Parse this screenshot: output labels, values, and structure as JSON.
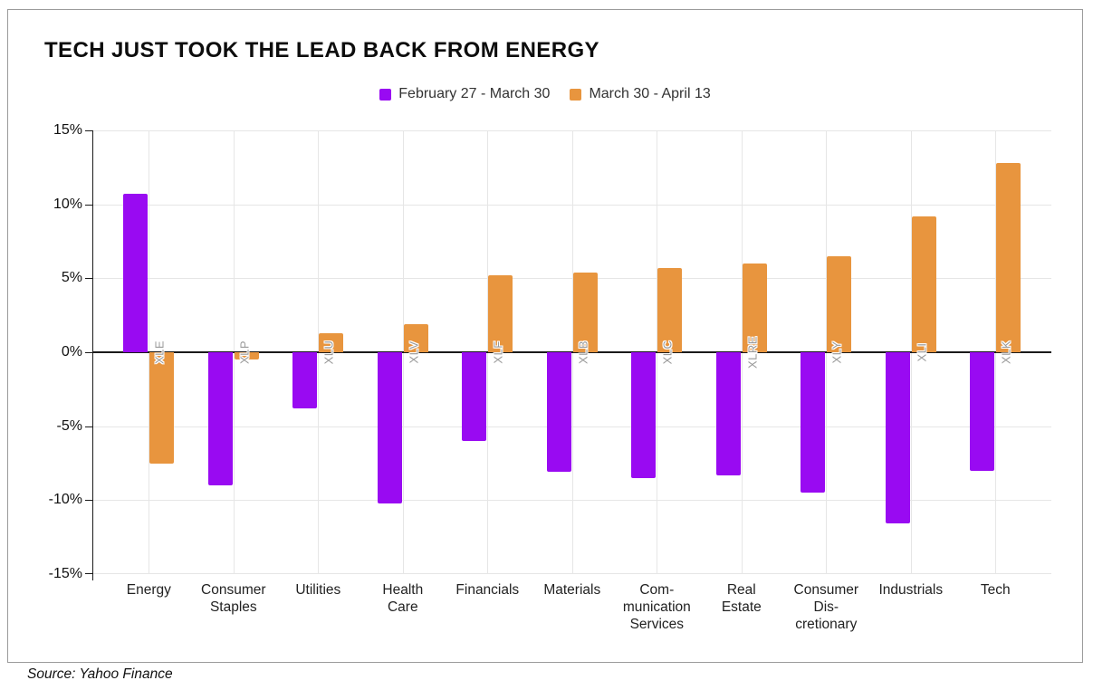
{
  "title": "TECH JUST TOOK THE LEAD BACK FROM ENERGY",
  "source_note": "Source: Yahoo Finance",
  "legend": [
    {
      "label": "February 27 - March 30",
      "color": "#990af2"
    },
    {
      "label": "March 30 - April 13",
      "color": "#e8953e"
    }
  ],
  "colors": {
    "series_purple": "#990af2",
    "series_orange": "#e8953e",
    "gridline": "#e6e6e6",
    "axis": "#1a1a1a",
    "ticker_text": "#999999",
    "box_border": "#9b9b9b"
  },
  "chart_data": {
    "type": "bar",
    "title": "TECH JUST TOOK THE LEAD BACK FROM ENERGY",
    "categories": [
      "Energy",
      "Consumer Staples",
      "Utilities",
      "Health Care",
      "Financials",
      "Materials",
      "Communication Services",
      "Real Estate",
      "Consumer Discretionary",
      "Industrials",
      "Tech"
    ],
    "category_label_lines": [
      [
        "Energy"
      ],
      [
        "Consumer",
        "Staples"
      ],
      [
        "Utilities"
      ],
      [
        "Health",
        "Care"
      ],
      [
        "Financials"
      ],
      [
        "Materials"
      ],
      [
        "Com-",
        "munication",
        "Services"
      ],
      [
        "Real",
        "Estate"
      ],
      [
        "Consumer",
        "Dis-",
        "cretionary"
      ],
      [
        "Industrials"
      ],
      [
        "Tech"
      ]
    ],
    "tickers": [
      "XLE",
      "XLP",
      "XLU",
      "XLV",
      "XLF",
      "XLB",
      "XLC",
      "XLRE",
      "XLY",
      "XLI",
      "XLK"
    ],
    "series": [
      {
        "name": "February 27 - March 30",
        "color": "#990af2",
        "values": [
          10.7,
          -9.0,
          -3.8,
          -10.2,
          -6.0,
          -8.1,
          -8.5,
          -8.3,
          -9.5,
          -11.6,
          -8.0
        ]
      },
      {
        "name": "March 30 - April 13",
        "color": "#e8953e",
        "values": [
          -7.5,
          -0.5,
          1.3,
          1.9,
          5.2,
          5.4,
          5.7,
          6.0,
          6.5,
          9.2,
          12.8
        ]
      }
    ],
    "y_axis": {
      "min": -15,
      "max": 15,
      "tick_step": 5,
      "unit": "%",
      "tick_labels": [
        "15%",
        "10%",
        "5%",
        "0%",
        "-5%",
        "-10%",
        "-15%"
      ]
    },
    "grid": true,
    "legend_position": "top"
  }
}
